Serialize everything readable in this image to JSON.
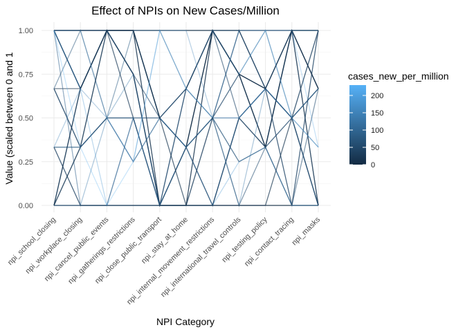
{
  "chart_data": {
    "type": "line",
    "subtype": "parallel-coordinates",
    "title": "Effect of NPIs on New Cases/Million",
    "xlabel": "NPI Category",
    "ylabel": "Value (scaled between 0 and 1",
    "ylim": [
      0,
      1
    ],
    "y_ticks": [
      "0.00",
      "0.25",
      "0.50",
      "0.75",
      "1.00"
    ],
    "y_tick_values": [
      0,
      0.25,
      0.5,
      0.75,
      1
    ],
    "categories": [
      "npi_school_closing",
      "npi_workplace_closing",
      "npi_cancel_public_events",
      "npi_gatherings_restrictions",
      "npi_close_public_transport",
      "npi_stay_at_home",
      "npi_internal_movement_restrictions",
      "npi_international_travel_controls",
      "npi_testing_policy",
      "npi_contact_tracing",
      "npi_masks"
    ],
    "grid": true,
    "legend": {
      "title": "cases_new_per_million",
      "position": "right",
      "ticks": [
        "0",
        "50",
        "100",
        "150",
        "200"
      ],
      "tick_values": [
        0,
        50,
        100,
        150,
        200
      ],
      "range": [
        0,
        230
      ],
      "color_low": "#132B43",
      "color_high": "#56B1F7"
    },
    "series": [
      {
        "values": [
          1,
          0.667,
          1,
          1,
          0.5,
          0.333,
          1,
          0.75,
          0.667,
          1,
          1
        ],
        "color_value": 12
      },
      {
        "values": [
          0.667,
          0.667,
          1,
          0.75,
          0,
          0.333,
          1,
          0.75,
          0.333,
          1,
          0
        ],
        "color_value": 5
      },
      {
        "values": [
          1,
          0.667,
          1,
          1,
          0.5,
          0.333,
          0,
          0.5,
          0.667,
          0.5,
          0.667
        ],
        "color_value": 35
      },
      {
        "values": [
          0,
          0,
          0,
          0,
          0,
          0,
          0,
          0,
          0,
          0,
          0
        ],
        "color_value": 2
      },
      {
        "values": [
          1,
          1,
          1,
          1,
          1,
          1,
          1,
          1,
          1,
          1,
          1
        ],
        "color_value": 8
      },
      {
        "values": [
          0.333,
          0.333,
          0.5,
          0.5,
          0.5,
          0.333,
          0.5,
          0.25,
          0.333,
          0.5,
          0.667
        ],
        "color_value": 70
      },
      {
        "values": [
          1,
          0,
          0,
          0.5,
          0,
          0,
          0.5,
          0.5,
          0.667,
          0.5,
          0.333
        ],
        "color_value": 95
      },
      {
        "values": [
          0.667,
          0.333,
          0.5,
          0.25,
          0.5,
          0.667,
          1,
          0.75,
          0.333,
          1,
          0.667
        ],
        "color_value": 40
      },
      {
        "values": [
          0,
          0.667,
          1,
          0.75,
          0,
          0.333,
          0.5,
          1,
          0.667,
          0.5,
          0
        ],
        "color_value": 25
      },
      {
        "values": [
          1,
          1,
          1,
          1,
          0,
          0,
          1,
          0.75,
          0.333,
          1,
          0.667
        ],
        "color_value": 15
      },
      {
        "values": [
          0.333,
          0,
          0.5,
          0.75,
          0,
          0.667,
          0.5,
          0,
          0.667,
          1,
          1
        ],
        "color_value": 130
      },
      {
        "values": [
          0,
          0.333,
          0.5,
          0.5,
          0.5,
          0.667,
          0.5,
          0,
          0.333,
          0,
          0.667
        ],
        "color_value": 60
      },
      {
        "values": [
          1,
          0.667,
          0,
          0,
          0,
          0,
          0,
          0.25,
          0.333,
          0,
          0
        ],
        "color_value": 180
      },
      {
        "values": [
          0.333,
          0.333,
          0.5,
          1,
          1,
          0.667,
          1,
          0.75,
          1,
          0.5,
          0
        ],
        "color_value": 85
      },
      {
        "values": [
          0,
          0.667,
          1,
          0.5,
          0,
          0,
          0,
          0.5,
          0.333,
          1,
          0
        ],
        "color_value": 30
      },
      {
        "values": [
          1,
          1,
          0.5,
          0.25,
          0.5,
          0.333,
          0.5,
          1,
          1,
          1,
          0.333
        ],
        "color_value": 200
      },
      {
        "values": [
          0.667,
          0.333,
          1,
          0.75,
          0.5,
          0.667,
          1,
          0.5,
          0.333,
          0.5,
          0
        ],
        "color_value": 50
      },
      {
        "values": [
          0,
          0,
          0,
          0.5,
          0,
          0.333,
          0,
          0.5,
          0.667,
          0.5,
          0.667
        ],
        "color_value": 110
      },
      {
        "values": [
          1,
          1,
          1,
          0.75,
          0,
          0.667,
          1,
          1,
          0.667,
          0,
          1
        ],
        "color_value": 45
      },
      {
        "values": [
          0.333,
          0.667,
          0.5,
          0.25,
          1,
          1,
          0.5,
          0.5,
          0.667,
          0.5,
          1
        ],
        "color_value": 150
      },
      {
        "values": [
          0.667,
          1,
          0.5,
          0.5,
          0,
          0.333,
          0.5,
          0.25,
          0.333,
          0,
          0
        ],
        "color_value": 75
      },
      {
        "values": [
          0,
          0.333,
          1,
          1,
          0.5,
          0,
          0,
          0,
          0,
          0.5,
          1
        ],
        "color_value": 20
      },
      {
        "values": [
          1,
          0.333,
          0,
          0.25,
          1,
          0.667,
          0.5,
          0.75,
          1,
          0.5,
          0.333
        ],
        "color_value": 220
      },
      {
        "values": [
          0.333,
          0,
          0,
          0,
          0,
          0,
          0.5,
          0.75,
          0.667,
          1,
          0.667
        ],
        "color_value": 10
      }
    ]
  }
}
